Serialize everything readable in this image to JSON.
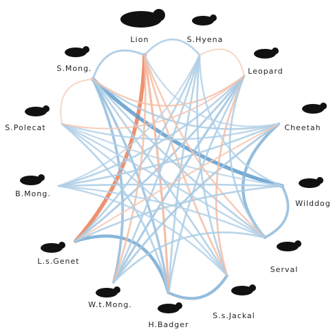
{
  "nodes": [
    {
      "label": "Lion"
    },
    {
      "label": "S.Hyena"
    },
    {
      "label": "Leopard"
    },
    {
      "label": "Cheetah"
    },
    {
      "label": "Wilddog"
    },
    {
      "label": "Serval"
    },
    {
      "label": "S.s.Jackal"
    },
    {
      "label": "H.Badger"
    },
    {
      "label": "W.t.Mong."
    },
    {
      "label": "L.s.Genet"
    },
    {
      "label": "B.Mong."
    },
    {
      "label": "S.Polecat"
    },
    {
      "label": "S.Mong."
    }
  ],
  "edges": [
    {
      "source": 0,
      "target": 9,
      "weight": -0.9
    },
    {
      "source": 12,
      "target": 4,
      "weight": 0.85
    },
    {
      "source": 3,
      "target": 5,
      "weight": 0.6
    },
    {
      "source": 9,
      "target": 7,
      "weight": 0.7
    },
    {
      "source": 7,
      "target": 6,
      "weight": 0.6
    },
    {
      "source": 4,
      "target": 5,
      "weight": 0.5
    },
    {
      "source": 12,
      "target": 0,
      "weight": 0.35
    },
    {
      "source": 0,
      "target": 1,
      "weight": 0.3
    },
    {
      "source": 12,
      "target": 8,
      "weight": 0.5
    },
    {
      "source": 12,
      "target": 7,
      "weight": 0.45
    },
    {
      "source": 2,
      "target": 8,
      "weight": 0.4
    },
    {
      "source": 2,
      "target": 9,
      "weight": 0.35
    },
    {
      "source": 1,
      "target": 7,
      "weight": 0.3
    },
    {
      "source": 0,
      "target": 7,
      "weight": -0.4
    },
    {
      "source": 0,
      "target": 6,
      "weight": -0.3
    },
    {
      "source": 1,
      "target": 9,
      "weight": 0.3
    },
    {
      "source": 2,
      "target": 10,
      "weight": 0.3
    },
    {
      "source": 3,
      "target": 11,
      "weight": 0.25
    },
    {
      "source": 3,
      "target": 10,
      "weight": 0.3
    },
    {
      "source": 4,
      "target": 11,
      "weight": 0.2
    },
    {
      "source": 4,
      "target": 10,
      "weight": 0.3
    },
    {
      "source": 5,
      "target": 12,
      "weight": 0.3
    },
    {
      "source": 5,
      "target": 11,
      "weight": 0.25
    },
    {
      "source": 6,
      "target": 12,
      "weight": 0.3
    },
    {
      "source": 6,
      "target": 11,
      "weight": 0.25
    },
    {
      "source": 8,
      "target": 1,
      "weight": 0.3
    },
    {
      "source": 8,
      "target": 3,
      "weight": 0.35
    },
    {
      "source": 7,
      "target": 2,
      "weight": 0.3
    },
    {
      "source": 10,
      "target": 1,
      "weight": 0.2
    },
    {
      "source": 11,
      "target": 2,
      "weight": -0.2
    },
    {
      "source": 12,
      "target": 3,
      "weight": 0.3
    },
    {
      "source": 12,
      "target": 2,
      "weight": -0.25
    },
    {
      "source": 0,
      "target": 8,
      "weight": -0.3
    },
    {
      "source": 0,
      "target": 5,
      "weight": -0.25
    },
    {
      "source": 1,
      "target": 6,
      "weight": 0.3
    },
    {
      "source": 2,
      "target": 6,
      "weight": -0.3
    },
    {
      "source": 3,
      "target": 9,
      "weight": -0.2
    },
    {
      "source": 10,
      "target": 5,
      "weight": 0.25
    },
    {
      "source": 9,
      "target": 4,
      "weight": 0.3
    },
    {
      "source": 8,
      "target": 5,
      "weight": 0.3
    },
    {
      "source": 11,
      "target": 7,
      "weight": 0.3
    },
    {
      "source": 10,
      "target": 6,
      "weight": 0.25
    },
    {
      "source": 1,
      "target": 4,
      "weight": 0.25
    },
    {
      "source": 0,
      "target": 3,
      "weight": 0.2
    },
    {
      "source": 2,
      "target": 5,
      "weight": 0.3
    },
    {
      "source": 11,
      "target": 12,
      "weight": -0.15
    },
    {
      "source": 1,
      "target": 2,
      "weight": -0.15
    }
  ]
}
